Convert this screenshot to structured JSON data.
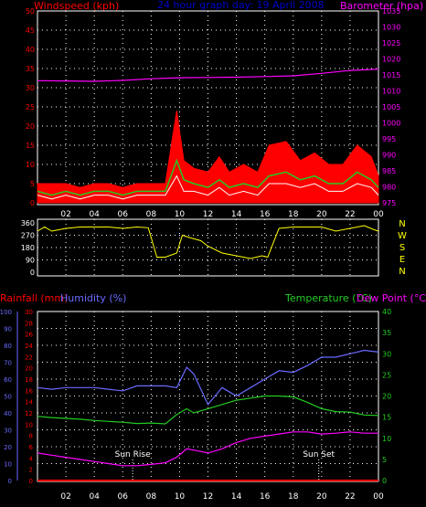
{
  "header": {
    "wind_label": "Windspeed (kph)",
    "title": "24 hour graph day: 19 April 2008",
    "baro_label": "Barometer (hpa)"
  },
  "colors": {
    "background": "#000000",
    "wind_axis": "#ff0000",
    "baro_axis": "#ff00ff",
    "title": "#0000cc",
    "grid": "#ffffff",
    "wind_gust": "#ff0000",
    "wind_avg": "#22cc22",
    "wind_speed": "#ffffff",
    "barometer": "#ff00ff",
    "direction": "#ffff00",
    "rain": "#ff0000",
    "humidity": "#6a6aff",
    "temperature": "#22cc22",
    "dewpoint": "#ff00ff",
    "temp_axis": "#22cc22",
    "sun_marker": "#ffffff"
  },
  "time_ticks": [
    "02",
    "04",
    "06",
    "08",
    "10",
    "12",
    "14",
    "16",
    "18",
    "20",
    "22",
    "00"
  ],
  "chart_data": [
    {
      "type": "area",
      "name": "wind-barometer",
      "x_hours": [
        0,
        1,
        2,
        3,
        4,
        5,
        6,
        7,
        8,
        9,
        9.8,
        10.3,
        11,
        12,
        12.8,
        13.5,
        14.5,
        15.5,
        16.3,
        17.5,
        18.5,
        19.5,
        20.5,
        21.5,
        22.5,
        23.5,
        24
      ],
      "wind_gust": [
        5,
        5,
        5,
        4,
        5,
        5,
        4,
        5,
        5,
        5,
        24,
        11,
        9,
        8,
        12,
        8,
        10,
        8,
        15,
        16,
        11,
        13,
        10,
        10,
        15,
        12,
        7
      ],
      "wind_avg": [
        3,
        2,
        3,
        2,
        3,
        3,
        2,
        3,
        3,
        3,
        11,
        6,
        5,
        4,
        6,
        4,
        5,
        4,
        7,
        8,
        6,
        7,
        5,
        5,
        8,
        6,
        4
      ],
      "wind_speed": [
        2,
        1,
        2,
        1,
        2,
        2,
        1,
        2,
        2,
        2,
        7,
        3,
        3,
        2,
        4,
        2,
        3,
        2,
        5,
        5,
        4,
        5,
        3,
        3,
        5,
        4,
        2
      ],
      "barometer_x": [
        0,
        2,
        4,
        6,
        8,
        10,
        12,
        14,
        16,
        18,
        20,
        22,
        24
      ],
      "barometer": [
        1013.2,
        1013.1,
        1013.0,
        1013.3,
        1013.8,
        1014.1,
        1014.2,
        1014.3,
        1014.5,
        1014.7,
        1015.5,
        1016.4,
        1016.8
      ],
      "wind_ylim": [
        0,
        50
      ],
      "wind_ticks": [
        "0",
        "5",
        "10",
        "15",
        "20",
        "25",
        "30",
        "35",
        "40",
        "45",
        "50"
      ],
      "baro_ylim": [
        975,
        1035
      ],
      "baro_ticks": [
        "975",
        "980",
        "985",
        "990",
        "995",
        "1000",
        "1005",
        "1010",
        "1015",
        "1020",
        "1025",
        "1030",
        "1035"
      ]
    },
    {
      "type": "line",
      "name": "wind-direction",
      "x_hours": [
        0,
        0.5,
        1,
        1.5,
        2,
        3,
        4,
        5,
        6,
        7,
        7.8,
        8.4,
        9,
        9.8,
        10.2,
        10.8,
        11.5,
        12,
        13,
        14,
        15,
        15.8,
        16.2,
        17,
        18,
        19,
        20,
        21,
        22,
        23,
        23.7,
        24
      ],
      "values": [
        300,
        330,
        300,
        310,
        320,
        330,
        330,
        330,
        320,
        330,
        325,
        110,
        110,
        140,
        270,
        250,
        230,
        190,
        140,
        120,
        100,
        120,
        110,
        320,
        330,
        330,
        330,
        300,
        320,
        340,
        310,
        300
      ],
      "ylim": [
        0,
        360
      ],
      "ticks": [
        "0",
        "90",
        "180",
        "270",
        "360"
      ],
      "compass": [
        "N",
        "W",
        "S",
        "E",
        "N"
      ]
    },
    {
      "type": "line",
      "name": "temperature-humidity",
      "x_hours": [
        0,
        1,
        2,
        3,
        4,
        5,
        6,
        7,
        8,
        9,
        9.8,
        10.5,
        11,
        12,
        13,
        14,
        15,
        16,
        17,
        18,
        19,
        20,
        21,
        22,
        23,
        24
      ],
      "humidity": [
        55,
        54,
        55,
        55,
        55,
        54,
        53,
        56,
        56,
        56,
        55,
        67,
        63,
        45,
        55,
        50,
        55,
        60,
        65,
        64,
        68,
        73,
        73,
        75,
        77,
        76
      ],
      "temperature": [
        15.2,
        14.9,
        14.7,
        14.5,
        14.2,
        14.0,
        13.8,
        13.5,
        13.6,
        13.4,
        15.6,
        17.0,
        16.0,
        17.0,
        18.0,
        19.0,
        19.5,
        20.0,
        20.0,
        19.8,
        18.5,
        17.0,
        16.3,
        16.2,
        15.5,
        15.4
      ],
      "dewpoint": [
        6.5,
        6.0,
        5.5,
        5.0,
        4.5,
        4.0,
        3.5,
        3.5,
        3.8,
        4.2,
        5.5,
        7.5,
        7.2,
        6.5,
        7.5,
        9.0,
        10.0,
        10.5,
        11.0,
        11.5,
        11.5,
        11.0,
        11.2,
        11.5,
        11.2,
        11.2
      ],
      "rainfall": [
        0,
        0,
        0,
        0,
        0,
        0,
        0,
        0,
        0,
        0,
        0,
        0,
        0,
        0,
        0,
        0,
        0,
        0,
        0,
        0,
        0,
        0,
        0,
        0,
        0,
        0
      ],
      "humidity_ylim": [
        0,
        100
      ],
      "humidity_ticks": [
        "0",
        "10",
        "20",
        "30",
        "40",
        "50",
        "60",
        "70",
        "80",
        "90",
        "100"
      ],
      "rain_ylim": [
        0,
        30
      ],
      "rain_ticks": [
        "0",
        "2",
        "4",
        "6",
        "8",
        "10",
        "12",
        "14",
        "16",
        "18",
        "20",
        "22",
        "24",
        "26",
        "28",
        "30"
      ],
      "temp_ylim": [
        0,
        40
      ],
      "temp_ticks": [
        "0",
        "5",
        "10",
        "15",
        "20",
        "25",
        "30",
        "35",
        "40"
      ],
      "rainfall_label": "Rainfall (mm)",
      "humidity_label": "Humidity (%)",
      "temperature_label": "Temperature (°C)",
      "dewpoint_label": "Dew Point (°C)",
      "sunrise_label": "Sun Rise",
      "sunrise_hour": 6.7,
      "sunset_label": "Sun Set",
      "sunset_hour": 19.8
    }
  ]
}
